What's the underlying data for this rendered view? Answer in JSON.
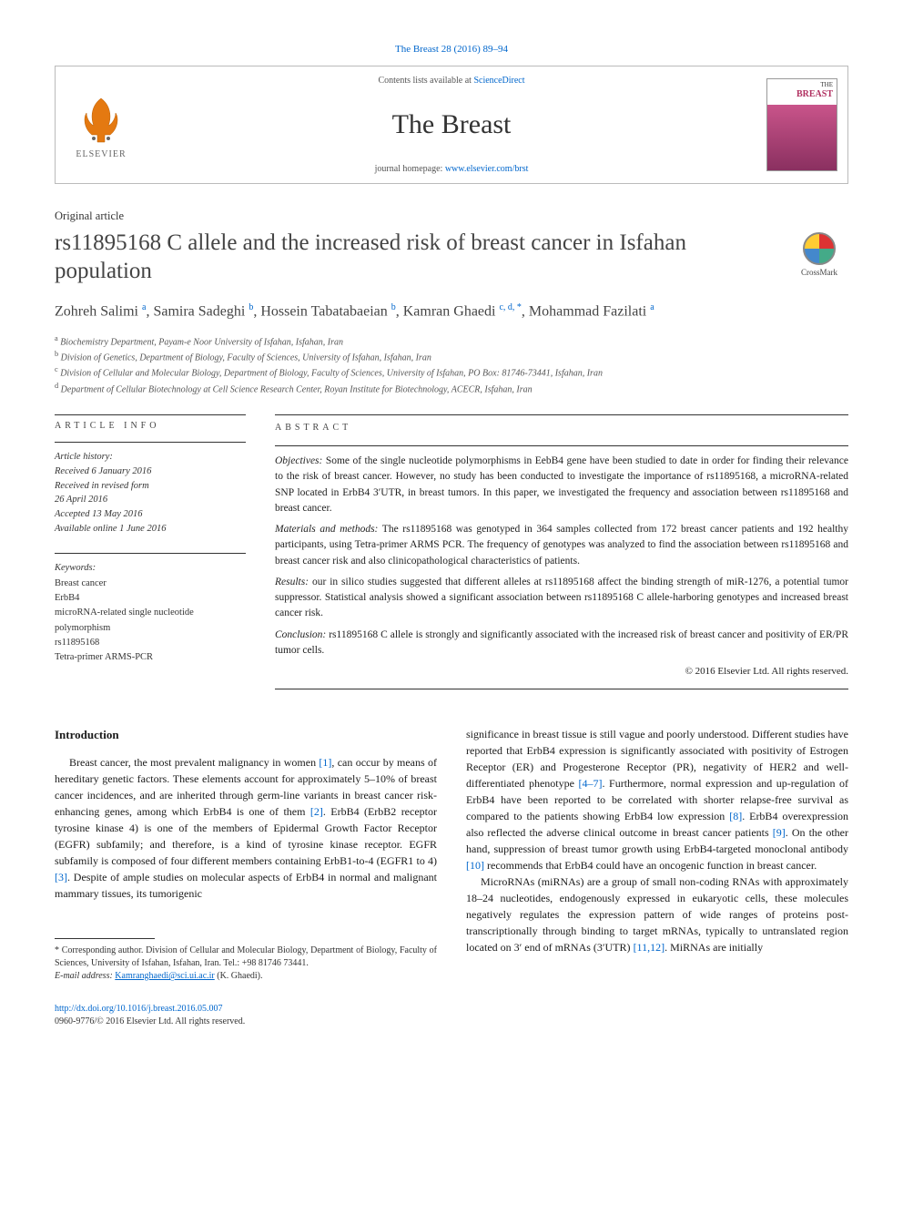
{
  "citation": "The Breast 28 (2016) 89–94",
  "masthead": {
    "contents_prefix": "Contents lists available at ",
    "contents_link": "ScienceDirect",
    "journal_name": "The Breast",
    "homepage_prefix": "journal homepage: ",
    "homepage_link": "www.elsevier.com/brst",
    "publisher_name": "ELSEVIER",
    "cover_label_top": "THE",
    "cover_label_main": "BREAST"
  },
  "article_type": "Original article",
  "title": "rs11895168 C allele and the increased risk of breast cancer in Isfahan population",
  "crossmark_label": "CrossMark",
  "authors_html": "Zohreh Salimi <sup>a</sup>, Samira Sadeghi <sup>b</sup>, Hossein Tabatabaeian <sup>b</sup>, Kamran Ghaedi <sup>c, d, *</sup>, Mohammad Fazilati <sup>a</sup>",
  "affiliations": [
    {
      "sup": "a",
      "text": "Biochemistry Department, Payam-e Noor University of Isfahan, Isfahan, Iran"
    },
    {
      "sup": "b",
      "text": "Division of Genetics, Department of Biology, Faculty of Sciences, University of Isfahan, Isfahan, Iran"
    },
    {
      "sup": "c",
      "text": "Division of Cellular and Molecular Biology, Department of Biology, Faculty of Sciences, University of Isfahan, PO Box: 81746-73441, Isfahan, Iran"
    },
    {
      "sup": "d",
      "text": "Department of Cellular Biotechnology at Cell Science Research Center, Royan Institute for Biotechnology, ACECR, Isfahan, Iran"
    }
  ],
  "info": {
    "header": "ARTICLE INFO",
    "history_label": "Article history:",
    "history": [
      "Received 6 January 2016",
      "Received in revised form",
      "26 April 2016",
      "Accepted 13 May 2016",
      "Available online 1 June 2016"
    ],
    "keywords_label": "Keywords:",
    "keywords": [
      "Breast cancer",
      "ErbB4",
      "microRNA-related single nucleotide polymorphism",
      "rs11895168",
      "Tetra-primer ARMS-PCR"
    ]
  },
  "abstract": {
    "header": "ABSTRACT",
    "objectives_head": "Objectives:",
    "objectives": " Some of the single nucleotide polymorphisms in EebB4 gene have been studied to date in order for finding their relevance to the risk of breast cancer. However, no study has been conducted to investigate the importance of rs11895168, a microRNA-related SNP located in ErbB4 3′UTR, in breast tumors. In this paper, we investigated the frequency and association between rs11895168 and breast cancer.",
    "methods_head": "Materials and methods:",
    "methods": " The rs11895168 was genotyped in 364 samples collected from 172 breast cancer patients and 192 healthy participants, using Tetra-primer ARMS PCR. The frequency of genotypes was analyzed to find the association between rs11895168 and breast cancer risk and also clinicopathological characteristics of patients.",
    "results_head": "Results:",
    "results": " our in silico studies suggested that different alleles at rs11895168 affect the binding strength of miR-1276, a potential tumor suppressor. Statistical analysis showed a significant association between rs11895168 C allele-harboring genotypes and increased breast cancer risk.",
    "conclusion_head": "Conclusion:",
    "conclusion": " rs11895168 C allele is strongly and significantly associated with the increased risk of breast cancer and positivity of ER/PR tumor cells.",
    "copyright": "© 2016 Elsevier Ltd. All rights reserved."
  },
  "body": {
    "intro_heading": "Introduction",
    "left_p1": "Breast cancer, the most prevalent malignancy in women [1], can occur by means of hereditary genetic factors. These elements account for approximately 5–10% of breast cancer incidences, and are inherited through germ-line variants in breast cancer risk-enhancing genes, among which ErbB4 is one of them [2]. ErbB4 (ErbB2 receptor tyrosine kinase 4) is one of the members of Epidermal Growth Factor Receptor (EGFR) subfamily; and therefore, is a kind of tyrosine kinase receptor. EGFR subfamily is composed of four different members containing ErbB1-to-4 (EGFR1 to 4) [3]. Despite of ample studies on molecular aspects of ErbB4 in normal and malignant mammary tissues, its tumorigenic",
    "right_p1": "significance in breast tissue is still vague and poorly understood. Different studies have reported that ErbB4 expression is significantly associated with positivity of Estrogen Receptor (ER) and Progesterone Receptor (PR), negativity of HER2 and well-differentiated phenotype [4–7]. Furthermore, normal expression and up-regulation of ErbB4 have been reported to be correlated with shorter relapse-free survival as compared to the patients showing ErbB4 low expression [8]. ErbB4 overexpression also reflected the adverse clinical outcome in breast cancer patients [9]. On the other hand, suppression of breast tumor growth using ErbB4-targeted monoclonal antibody [10] recommends that ErbB4 could have an oncogenic function in breast cancer.",
    "right_p2": "MicroRNAs (miRNAs) are a group of small non-coding RNAs with approximately 18–24 nucleotides, endogenously expressed in eukaryotic cells, these molecules negatively regulates the expression pattern of wide ranges of proteins post-transcriptionally through binding to target mRNAs, typically to untranslated region located on 3′ end of mRNAs (3′UTR) [11,12]. MiRNAs are initially"
  },
  "footnotes": {
    "corr": "* Corresponding author. Division of Cellular and Molecular Biology, Department of Biology, Faculty of Sciences, University of Isfahan, Isfahan, Iran. Tel.: +98 81746 73441.",
    "email_label": "E-mail address:",
    "email": "Kamranghaedi@sci.ui.ac.ir",
    "email_who": " (K. Ghaedi)."
  },
  "doi": {
    "url": "http://dx.doi.org/10.1016/j.breast.2016.05.007",
    "issn_line": "0960-9776/© 2016 Elsevier Ltd. All rights reserved."
  },
  "colors": {
    "link": "#0066cc",
    "text": "#1a1a1a",
    "rule": "#333333"
  }
}
